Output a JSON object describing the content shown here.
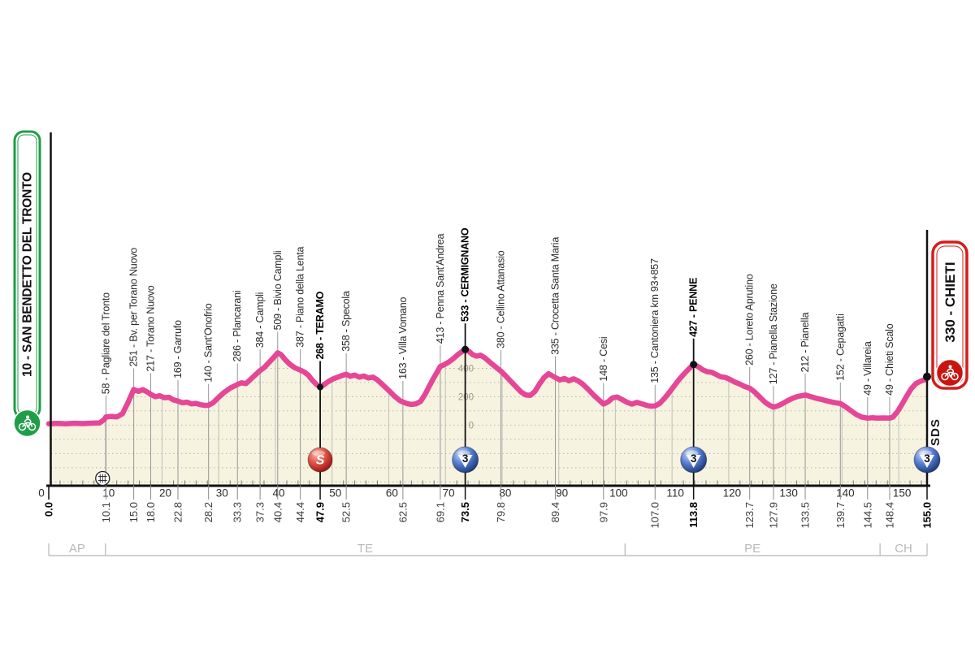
{
  "badges": {
    "start": {
      "label": "10 - SAN BENDETTO DEL TRONTO",
      "border_color": "#1f9e48",
      "circle_color": "#1f9e48"
    },
    "finish": {
      "label": "330 - CHIETI",
      "border_color": "#d41d18",
      "circle_color": "#c9140f"
    }
  },
  "finish_area_label": "SDS",
  "colors": {
    "profile_line": "#e64696",
    "area_fill": "#f6f3e1",
    "grid_vertical": "#c9c8bd",
    "grid_dotted": "#b8b6a6",
    "leader_gray": "#979797",
    "axis_black": "#111111",
    "province_gray": "#b8b8b8",
    "elev_label_gray": "#9a988c",
    "sprint_ball": "#c3161c",
    "gpm_ball": "#1d3f8f"
  },
  "chart_data": {
    "type": "area",
    "title": "",
    "x_unit": "km",
    "xlim": [
      0,
      155
    ],
    "elevation_axis": {
      "labeled_m": [
        0,
        200,
        400
      ],
      "gridline_step_m": 100
    },
    "x_axis_km_labels": [
      0,
      10,
      20,
      30,
      40,
      50,
      60,
      70,
      80,
      90,
      100,
      110,
      120,
      130,
      140,
      150
    ],
    "marker_glyphs": {
      "sprint": "S",
      "gpm3": "3"
    },
    "railway_crossing_km": 9.5,
    "waypoints": [
      {
        "km": 0.0,
        "elev": 10,
        "name": "",
        "type": "start"
      },
      {
        "km": 10.1,
        "elev": 58,
        "name": "58 - Pagliare del Tronto",
        "type": "town"
      },
      {
        "km": 15.0,
        "elev": 251,
        "name": "251 - Bv. per Torano Nuovo",
        "type": "town"
      },
      {
        "km": 18.0,
        "elev": 217,
        "name": "217 - Torano Nuovo",
        "type": "town"
      },
      {
        "km": 22.8,
        "elev": 169,
        "name": "169 - Garrufo",
        "type": "town"
      },
      {
        "km": 28.2,
        "elev": 140,
        "name": "140 - Sant'Onofrio",
        "type": "town"
      },
      {
        "km": 33.3,
        "elev": 286,
        "name": "286 - Plancarani",
        "type": "town"
      },
      {
        "km": 37.3,
        "elev": 384,
        "name": "384 - Campli",
        "type": "town"
      },
      {
        "km": 40.4,
        "elev": 509,
        "name": "509 - Bivio Campli",
        "type": "town"
      },
      {
        "km": 44.4,
        "elev": 387,
        "name": "387 - Piano della Lenta",
        "type": "town"
      },
      {
        "km": 47.9,
        "elev": 268,
        "name": "268 - TERAMO",
        "type": "sprint"
      },
      {
        "km": 52.5,
        "elev": 358,
        "name": "358 - Specola",
        "type": "town"
      },
      {
        "km": 62.5,
        "elev": 163,
        "name": "163 - Villa Vomano",
        "type": "town"
      },
      {
        "km": 69.1,
        "elev": 413,
        "name": "413 - Penna Sant'Andrea",
        "type": "town"
      },
      {
        "km": 73.5,
        "elev": 533,
        "name": "533 - CERMIGNANO",
        "type": "gpm3"
      },
      {
        "km": 79.8,
        "elev": 380,
        "name": "380 - Cellino Attanasio",
        "type": "town"
      },
      {
        "km": 89.4,
        "elev": 335,
        "name": "335 - Crocetta Santa Maria",
        "type": "town"
      },
      {
        "km": 97.9,
        "elev": 148,
        "name": "148 - Cesi",
        "type": "town"
      },
      {
        "km": 107.0,
        "elev": 135,
        "name": "135 - Cantoniera km 93+857",
        "type": "town"
      },
      {
        "km": 113.8,
        "elev": 427,
        "name": "427 - PENNE",
        "type": "gpm3"
      },
      {
        "km": 123.7,
        "elev": 260,
        "name": "260 - Loreto Aprutino",
        "type": "town"
      },
      {
        "km": 127.9,
        "elev": 127,
        "name": "127 - Pianella Stazione",
        "type": "town"
      },
      {
        "km": 133.5,
        "elev": 212,
        "name": "212 - Pianella",
        "type": "town"
      },
      {
        "km": 139.7,
        "elev": 152,
        "name": "152 - Cepagatti",
        "type": "town"
      },
      {
        "km": 144.5,
        "elev": 49,
        "name": "49 - Villareia",
        "type": "town"
      },
      {
        "km": 148.4,
        "elev": 49,
        "name": "49 - Chieti Scalo",
        "type": "town"
      },
      {
        "km": 155.0,
        "elev": 330,
        "name": "",
        "type": "finish"
      }
    ],
    "provinces": [
      {
        "label": "AP",
        "from_km": 0,
        "to_km": 10.0
      },
      {
        "label": "TE",
        "from_km": 10.0,
        "to_km": 101.7
      },
      {
        "label": "PE",
        "from_km": 101.7,
        "to_km": 146.7
      },
      {
        "label": "CH",
        "from_km": 146.7,
        "to_km": 155
      }
    ],
    "profile_points": [
      [
        0,
        10
      ],
      [
        1.5,
        12
      ],
      [
        3,
        10
      ],
      [
        4.5,
        13
      ],
      [
        6,
        11
      ],
      [
        7.5,
        14
      ],
      [
        9,
        16
      ],
      [
        9.8,
        40
      ],
      [
        10.1,
        58
      ],
      [
        11,
        62
      ],
      [
        12,
        58
      ],
      [
        13,
        80
      ],
      [
        14,
        160
      ],
      [
        15,
        251
      ],
      [
        15.8,
        238
      ],
      [
        16.6,
        250
      ],
      [
        17.3,
        235
      ],
      [
        18,
        217
      ],
      [
        18.8,
        200
      ],
      [
        19.6,
        207
      ],
      [
        20.4,
        193
      ],
      [
        21.2,
        196
      ],
      [
        22,
        178
      ],
      [
        22.8,
        169
      ],
      [
        23.6,
        158
      ],
      [
        24.4,
        162
      ],
      [
        25.2,
        150
      ],
      [
        26,
        153
      ],
      [
        26.8,
        144
      ],
      [
        27.5,
        139
      ],
      [
        28.2,
        140
      ],
      [
        29,
        158
      ],
      [
        30,
        196
      ],
      [
        31,
        232
      ],
      [
        32,
        260
      ],
      [
        33.3,
        286
      ],
      [
        34,
        298
      ],
      [
        34.8,
        292
      ],
      [
        35.6,
        322
      ],
      [
        36.4,
        352
      ],
      [
        37.3,
        384
      ],
      [
        38,
        405
      ],
      [
        38.8,
        438
      ],
      [
        39.6,
        472
      ],
      [
        40.4,
        509
      ],
      [
        41,
        496
      ],
      [
        41.7,
        462
      ],
      [
        42.5,
        430
      ],
      [
        43.4,
        404
      ],
      [
        44.4,
        387
      ],
      [
        45.1,
        374
      ],
      [
        45.8,
        352
      ],
      [
        46.5,
        316
      ],
      [
        47.2,
        288
      ],
      [
        47.9,
        268
      ],
      [
        48.6,
        286
      ],
      [
        49.4,
        308
      ],
      [
        50.2,
        326
      ],
      [
        51,
        338
      ],
      [
        51.8,
        350
      ],
      [
        52.5,
        358
      ],
      [
        53.2,
        344
      ],
      [
        54,
        352
      ],
      [
        54.8,
        338
      ],
      [
        55.6,
        346
      ],
      [
        56.4,
        332
      ],
      [
        57.2,
        338
      ],
      [
        58,
        318
      ],
      [
        59,
        282
      ],
      [
        60,
        244
      ],
      [
        61,
        204
      ],
      [
        62,
        172
      ],
      [
        62.5,
        163
      ],
      [
        63.2,
        152
      ],
      [
        64,
        146
      ],
      [
        64.8,
        150
      ],
      [
        65.6,
        166
      ],
      [
        66.4,
        216
      ],
      [
        67.2,
        278
      ],
      [
        68,
        336
      ],
      [
        69.1,
        413
      ],
      [
        69.8,
        426
      ],
      [
        70.6,
        444
      ],
      [
        71.4,
        468
      ],
      [
        72.2,
        496
      ],
      [
        73,
        520
      ],
      [
        73.5,
        533
      ],
      [
        74.2,
        518
      ],
      [
        74.8,
        496
      ],
      [
        75.5,
        486
      ],
      [
        76.2,
        492
      ],
      [
        77,
        472
      ],
      [
        78,
        438
      ],
      [
        78.9,
        408
      ],
      [
        79.8,
        380
      ],
      [
        80.7,
        344
      ],
      [
        81.6,
        306
      ],
      [
        82.5,
        268
      ],
      [
        83.4,
        232
      ],
      [
        84.2,
        212
      ],
      [
        85,
        210
      ],
      [
        85.8,
        238
      ],
      [
        86.6,
        290
      ],
      [
        87.4,
        334
      ],
      [
        88.2,
        362
      ],
      [
        89.4,
        335
      ],
      [
        90.2,
        318
      ],
      [
        91,
        328
      ],
      [
        91.8,
        312
      ],
      [
        92.6,
        326
      ],
      [
        93.4,
        312
      ],
      [
        94.2,
        290
      ],
      [
        95.2,
        252
      ],
      [
        96.2,
        210
      ],
      [
        97.9,
        148
      ],
      [
        98.7,
        164
      ],
      [
        99.5,
        192
      ],
      [
        100.3,
        198
      ],
      [
        101.1,
        182
      ],
      [
        102,
        162
      ],
      [
        102.9,
        148
      ],
      [
        103.8,
        160
      ],
      [
        104.7,
        150
      ],
      [
        105.6,
        138
      ],
      [
        106.3,
        134
      ],
      [
        107,
        135
      ],
      [
        107.8,
        152
      ],
      [
        108.6,
        186
      ],
      [
        109.5,
        230
      ],
      [
        110.4,
        278
      ],
      [
        111.3,
        324
      ],
      [
        112.2,
        364
      ],
      [
        113,
        398
      ],
      [
        113.8,
        427
      ],
      [
        114.6,
        412
      ],
      [
        115.4,
        390
      ],
      [
        116.2,
        376
      ],
      [
        117,
        372
      ],
      [
        117.8,
        356
      ],
      [
        118.6,
        340
      ],
      [
        119.4,
        336
      ],
      [
        120.2,
        322
      ],
      [
        121,
        304
      ],
      [
        122,
        288
      ],
      [
        122.8,
        272
      ],
      [
        123.7,
        260
      ],
      [
        124.6,
        232
      ],
      [
        125.5,
        196
      ],
      [
        126.4,
        162
      ],
      [
        127.2,
        140
      ],
      [
        127.9,
        127
      ],
      [
        128.7,
        136
      ],
      [
        129.5,
        152
      ],
      [
        130.4,
        172
      ],
      [
        131.3,
        190
      ],
      [
        132.2,
        202
      ],
      [
        133.5,
        212
      ],
      [
        134.4,
        202
      ],
      [
        135.4,
        190
      ],
      [
        136.4,
        180
      ],
      [
        137.4,
        170
      ],
      [
        138.5,
        160
      ],
      [
        139.7,
        152
      ],
      [
        140.6,
        130
      ],
      [
        141.5,
        104
      ],
      [
        142.4,
        78
      ],
      [
        143.4,
        58
      ],
      [
        144.5,
        49
      ],
      [
        145.3,
        52
      ],
      [
        146.2,
        49
      ],
      [
        147.3,
        51
      ],
      [
        148.4,
        49
      ],
      [
        149,
        58
      ],
      [
        149.8,
        96
      ],
      [
        150.6,
        148
      ],
      [
        151.4,
        204
      ],
      [
        152.2,
        256
      ],
      [
        153,
        292
      ],
      [
        153.8,
        308
      ],
      [
        154.4,
        318
      ],
      [
        155,
        330
      ]
    ]
  }
}
